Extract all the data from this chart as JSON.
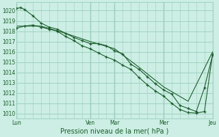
{
  "title": "Pression niveau de la mer( hPa )",
  "bg_color": "#cceee4",
  "grid_color": "#99ccbb",
  "line_color": "#1a5c2a",
  "ylim": [
    1009.5,
    1020.8
  ],
  "yticks": [
    1010,
    1011,
    1012,
    1013,
    1014,
    1015,
    1016,
    1017,
    1018,
    1019,
    1020
  ],
  "day_labels": [
    "Lun",
    "Ven",
    "Mar",
    "Mer",
    "Jeu"
  ],
  "day_positions": [
    0,
    9,
    12,
    18,
    24
  ],
  "series1_x": [
    0,
    0.5,
    1,
    2,
    3,
    4,
    5,
    6,
    7,
    8,
    9,
    10,
    11,
    12,
    13,
    14,
    15,
    16,
    17,
    18,
    19,
    20,
    21,
    22,
    23,
    24
  ],
  "series1_y": [
    1020.2,
    1020.3,
    1020.1,
    1019.5,
    1018.8,
    1018.4,
    1018.2,
    1017.8,
    1017.4,
    1017.1,
    1016.8,
    1016.8,
    1016.6,
    1016.1,
    1015.8,
    1014.8,
    1014.3,
    1013.6,
    1012.9,
    1012.3,
    1011.9,
    1010.8,
    1010.5,
    1010.2,
    1012.5,
    1015.7
  ],
  "series2_x": [
    0,
    1,
    2,
    3,
    4,
    5,
    6,
    7,
    8,
    9,
    10,
    11,
    12,
    13,
    14,
    15,
    16,
    17,
    18,
    19,
    20,
    21,
    22,
    23,
    24
  ],
  "series2_y": [
    1018.3,
    1018.5,
    1018.6,
    1018.4,
    1018.2,
    1018.0,
    1017.5,
    1017.1,
    1016.6,
    1016.3,
    1015.9,
    1015.5,
    1015.2,
    1014.7,
    1014.3,
    1013.5,
    1012.8,
    1012.2,
    1011.7,
    1011.0,
    1010.4,
    1010.1,
    1010.05,
    1010.2,
    1015.8
  ],
  "series3_x": [
    0,
    3,
    6,
    9,
    12,
    15,
    18,
    21,
    24
  ],
  "series3_y": [
    1018.5,
    1018.5,
    1017.8,
    1017.0,
    1016.3,
    1014.5,
    1012.6,
    1011.2,
    1016.0
  ],
  "marker_style": "+",
  "marker_size": 3.5,
  "line_width": 0.8,
  "label_fontsize": 5.5,
  "xlabel_fontsize": 7.0
}
